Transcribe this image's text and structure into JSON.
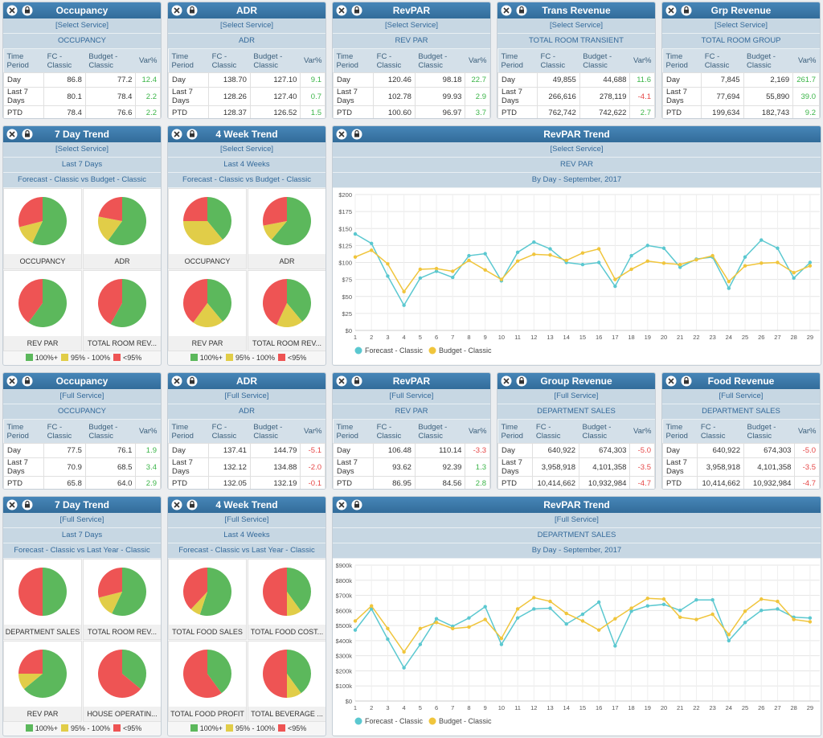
{
  "panels": [
    {
      "kind": "table",
      "title": "Occupancy",
      "service": "[Select Service]",
      "measure": "OCCUPANCY",
      "columns": [
        "Time Period",
        "FC - Classic",
        "Budget - Classic",
        "Var%"
      ],
      "rows": [
        [
          "Day",
          "86.8",
          "77.2",
          "12.4"
        ],
        [
          "Last 7 Days",
          "80.1",
          "78.4",
          "2.2"
        ],
        [
          "PTD",
          "78.4",
          "76.6",
          "2.2"
        ]
      ]
    },
    {
      "kind": "table",
      "title": "ADR",
      "service": "[Select Service]",
      "measure": "ADR",
      "columns": [
        "Time Period",
        "FC - Classic",
        "Budget - Classic",
        "Var%"
      ],
      "rows": [
        [
          "Day",
          "138.70",
          "127.10",
          "9.1"
        ],
        [
          "Last 7 Days",
          "128.26",
          "127.40",
          "0.7"
        ],
        [
          "PTD",
          "128.37",
          "126.52",
          "1.5"
        ]
      ]
    },
    {
      "kind": "table",
      "title": "RevPAR",
      "service": "[Select Service]",
      "measure": "REV PAR",
      "columns": [
        "Time Period",
        "FC - Classic",
        "Budget - Classic",
        "Var%"
      ],
      "rows": [
        [
          "Day",
          "120.46",
          "98.18",
          "22.7"
        ],
        [
          "Last 7 Days",
          "102.78",
          "99.93",
          "2.9"
        ],
        [
          "PTD",
          "100.60",
          "96.97",
          "3.7"
        ]
      ]
    },
    {
      "kind": "table",
      "title": "Trans Revenue",
      "service": "[Select Service]",
      "measure": "TOTAL ROOM TRANSIENT",
      "columns": [
        "Time Period",
        "FC - Classic",
        "Budget - Classic",
        "Var%"
      ],
      "rows": [
        [
          "Day",
          "49,855",
          "44,688",
          "11.6"
        ],
        [
          "Last 7 Days",
          "266,616",
          "278,119",
          "-4.1"
        ],
        [
          "PTD",
          "762,742",
          "742,622",
          "2.7"
        ]
      ]
    },
    {
      "kind": "table",
      "title": "Grp Revenue",
      "service": "[Select Service]",
      "measure": "TOTAL ROOM GROUP",
      "columns": [
        "Time Period",
        "FC - Classic",
        "Budget - Classic",
        "Var%"
      ],
      "rows": [
        [
          "Day",
          "7,845",
          "2,169",
          "261.7"
        ],
        [
          "Last 7 Days",
          "77,694",
          "55,890",
          "39.0"
        ],
        [
          "PTD",
          "199,634",
          "182,743",
          "9.2"
        ]
      ]
    },
    {
      "kind": "pies",
      "title": "7 Day Trend",
      "service": "[Select Service]",
      "period": "Last 7 Days",
      "comparison": "Forecast - Classic vs Budget - Classic",
      "pies": [
        {
          "label": "OCCUPANCY",
          "values": [
            57,
            14,
            29
          ]
        },
        {
          "label": "ADR",
          "values": [
            60,
            18,
            22
          ]
        },
        {
          "label": "REV PAR",
          "values": [
            60,
            0,
            40
          ]
        },
        {
          "label": "TOTAL ROOM REV...",
          "values": [
            58,
            0,
            42
          ]
        }
      ],
      "legend": [
        {
          "name": "100%+",
          "color": "#5cb85c"
        },
        {
          "name": "95% - 100%",
          "color": "#e1cd48"
        },
        {
          "name": "<95%",
          "color": "#ee5454"
        }
      ]
    },
    {
      "kind": "pies",
      "title": "4 Week Trend",
      "service": "[Select Service]",
      "period": "Last 4 Weeks",
      "comparison": "Forecast - Classic vs Budget - Classic",
      "pies": [
        {
          "label": "OCCUPANCY",
          "values": [
            39,
            36,
            25
          ]
        },
        {
          "label": "ADR",
          "values": [
            61,
            11,
            28
          ]
        },
        {
          "label": "REV PAR",
          "values": [
            39,
            21,
            40
          ]
        },
        {
          "label": "TOTAL ROOM REV...",
          "values": [
            39,
            18,
            43
          ]
        }
      ],
      "legend": [
        {
          "name": "100%+",
          "color": "#5cb85c"
        },
        {
          "name": "95% - 100%",
          "color": "#e1cd48"
        },
        {
          "name": "<95%",
          "color": "#ee5454"
        }
      ]
    },
    {
      "kind": "line",
      "title": "RevPAR Trend",
      "service": "[Select Service]",
      "measure": "REV PAR",
      "period": "By Day - September, 2017",
      "x": [
        1,
        2,
        3,
        4,
        5,
        6,
        7,
        8,
        9,
        10,
        11,
        12,
        13,
        14,
        15,
        16,
        17,
        18,
        19,
        20,
        21,
        22,
        23,
        24,
        25,
        26,
        27,
        28,
        29
      ],
      "xlim": [
        1,
        29.6
      ],
      "ylim": [
        0,
        200
      ],
      "yticks": [
        {
          "value": 0,
          "label": "$0"
        },
        {
          "value": 25,
          "label": "$25"
        },
        {
          "value": 50,
          "label": "$50"
        },
        {
          "value": 75,
          "label": "$75"
        },
        {
          "value": 100,
          "label": "$100"
        },
        {
          "value": 125,
          "label": "$125"
        },
        {
          "value": 150,
          "label": "$150"
        },
        {
          "value": 175,
          "label": "$175"
        },
        {
          "value": 200,
          "label": "$200"
        }
      ],
      "series": [
        {
          "name": "Forecast - Classic",
          "color": "#5bc8d0",
          "values": [
            142,
            128,
            80,
            37,
            77,
            87,
            78,
            110,
            113,
            73,
            115,
            130,
            120,
            100,
            97,
            100,
            65,
            110,
            125,
            121,
            93,
            105,
            108,
            62,
            108,
            133,
            121,
            77,
            100
          ]
        },
        {
          "name": "Budget - Classic",
          "color": "#f0c53c",
          "values": [
            108,
            118,
            98,
            57,
            90,
            91,
            87,
            103,
            89,
            75,
            102,
            112,
            111,
            103,
            114,
            120,
            75,
            90,
            102,
            99,
            97,
            104,
            110,
            72,
            95,
            99,
            100,
            85,
            95
          ]
        }
      ]
    },
    {
      "kind": "table",
      "title": "Occupancy",
      "service": "[Full Service]",
      "measure": "OCCUPANCY",
      "columns": [
        "Time Period",
        "FC - Classic",
        "Budget - Classic",
        "Var%"
      ],
      "rows": [
        [
          "Day",
          "77.5",
          "76.1",
          "1.9"
        ],
        [
          "Last 7 Days",
          "70.9",
          "68.5",
          "3.4"
        ],
        [
          "PTD",
          "65.8",
          "64.0",
          "2.9"
        ]
      ]
    },
    {
      "kind": "table",
      "title": "ADR",
      "service": "[Full Service]",
      "measure": "ADR",
      "columns": [
        "Time Period",
        "FC - Classic",
        "Budget - Classic",
        "Var%"
      ],
      "rows": [
        [
          "Day",
          "137.41",
          "144.79",
          "-5.1"
        ],
        [
          "Last 7 Days",
          "132.12",
          "134.88",
          "-2.0"
        ],
        [
          "PTD",
          "132.05",
          "132.19",
          "-0.1"
        ]
      ]
    },
    {
      "kind": "table",
      "title": "RevPAR",
      "service": "[Full Service]",
      "measure": "REV PAR",
      "columns": [
        "Time Period",
        "FC - Classic",
        "Budget - Classic",
        "Var%"
      ],
      "rows": [
        [
          "Day",
          "106.48",
          "110.14",
          "-3.3"
        ],
        [
          "Last 7 Days",
          "93.62",
          "92.39",
          "1.3"
        ],
        [
          "PTD",
          "86.95",
          "84.56",
          "2.8"
        ]
      ]
    },
    {
      "kind": "table",
      "title": "Group Revenue",
      "service": "[Full Service]",
      "measure": "DEPARTMENT SALES",
      "columns": [
        "Time Period",
        "FC - Classic",
        "Budget - Classic",
        "Var%"
      ],
      "rows": [
        [
          "Day",
          "640,922",
          "674,303",
          "-5.0"
        ],
        [
          "Last 7 Days",
          "3,958,918",
          "4,101,358",
          "-3.5"
        ],
        [
          "PTD",
          "10,414,662",
          "10,932,984",
          "-4.7"
        ]
      ]
    },
    {
      "kind": "table",
      "title": "Food Revenue",
      "service": "[Full Service]",
      "measure": "DEPARTMENT SALES",
      "columns": [
        "Time Period",
        "FC - Classic",
        "Budget - Classic",
        "Var%"
      ],
      "rows": [
        [
          "Day",
          "640,922",
          "674,303",
          "-5.0"
        ],
        [
          "Last 7 Days",
          "3,958,918",
          "4,101,358",
          "-3.5"
        ],
        [
          "PTD",
          "10,414,662",
          "10,932,984",
          "-4.7"
        ]
      ]
    },
    {
      "kind": "pies",
      "title": "7 Day Trend",
      "service": "[Full Service]",
      "period": "Last 7 Days",
      "comparison": "Forecast - Classic vs Last Year - Classic",
      "pies": [
        {
          "label": "DEPARTMENT SALES",
          "values": [
            50,
            0,
            50
          ]
        },
        {
          "label": "TOTAL ROOM REV...",
          "values": [
            57,
            14,
            29
          ]
        },
        {
          "label": "REV PAR",
          "values": [
            64,
            11,
            25
          ]
        },
        {
          "label": "HOUSE OPERATIN...",
          "values": [
            36,
            0,
            64
          ]
        }
      ],
      "legend": [
        {
          "name": "100%+",
          "color": "#5cb85c"
        },
        {
          "name": "95% - 100%",
          "color": "#e1cd48"
        },
        {
          "name": "<95%",
          "color": "#ee5454"
        }
      ]
    },
    {
      "kind": "pies",
      "title": "4 Week Trend",
      "service": "[Full Service]",
      "period": "Last 4 Weeks",
      "comparison": "Forecast - Classic vs Last Year - Classic",
      "pies": [
        {
          "label": "TOTAL FOOD SALES",
          "values": [
            55,
            7,
            38
          ]
        },
        {
          "label": "TOTAL FOOD COST...",
          "values": [
            40,
            10,
            50
          ]
        },
        {
          "label": "TOTAL FOOD PROFIT",
          "values": [
            40,
            0,
            60
          ]
        },
        {
          "label": "TOTAL BEVERAGE ...",
          "values": [
            40,
            10,
            50
          ]
        }
      ],
      "legend": [
        {
          "name": "100%+",
          "color": "#5cb85c"
        },
        {
          "name": "95% - 100%",
          "color": "#e1cd48"
        },
        {
          "name": "<95%",
          "color": "#ee5454"
        }
      ]
    },
    {
      "kind": "line",
      "title": "RevPAR Trend",
      "service": "[Full Service]",
      "measure": "DEPARTMENT SALES",
      "period": "By Day - September, 2017",
      "x": [
        1,
        2,
        3,
        4,
        5,
        6,
        7,
        8,
        9,
        10,
        11,
        12,
        13,
        14,
        15,
        16,
        17,
        18,
        19,
        20,
        21,
        22,
        23,
        24,
        25,
        26,
        27,
        28,
        29
      ],
      "xlim": [
        1,
        29.6
      ],
      "ylim": [
        0,
        900000
      ],
      "yticks": [
        {
          "value": 0,
          "label": "$0"
        },
        {
          "value": 100000,
          "label": "$100k"
        },
        {
          "value": 200000,
          "label": "$200k"
        },
        {
          "value": 300000,
          "label": "$300k"
        },
        {
          "value": 400000,
          "label": "$400k"
        },
        {
          "value": 500000,
          "label": "$500k"
        },
        {
          "value": 600000,
          "label": "$600k"
        },
        {
          "value": 700000,
          "label": "$700k"
        },
        {
          "value": 800000,
          "label": "$800k"
        },
        {
          "value": 900000,
          "label": "$900k"
        }
      ],
      "series": [
        {
          "name": "Forecast - Classic",
          "color": "#5bc8d0",
          "values": [
            470000,
            610000,
            410000,
            220000,
            375000,
            545000,
            495000,
            550000,
            625000,
            375000,
            550000,
            610000,
            615000,
            510000,
            575000,
            655000,
            365000,
            595000,
            630000,
            640000,
            600000,
            670000,
            670000,
            400000,
            520000,
            600000,
            610000,
            555000,
            550000
          ]
        },
        {
          "name": "Budget - Classic",
          "color": "#f0c53c",
          "values": [
            530000,
            630000,
            480000,
            325000,
            480000,
            520000,
            480000,
            490000,
            540000,
            415000,
            610000,
            685000,
            660000,
            580000,
            530000,
            470000,
            545000,
            615000,
            680000,
            675000,
            555000,
            540000,
            575000,
            440000,
            595000,
            675000,
            660000,
            540000,
            525000
          ]
        }
      ]
    }
  ]
}
